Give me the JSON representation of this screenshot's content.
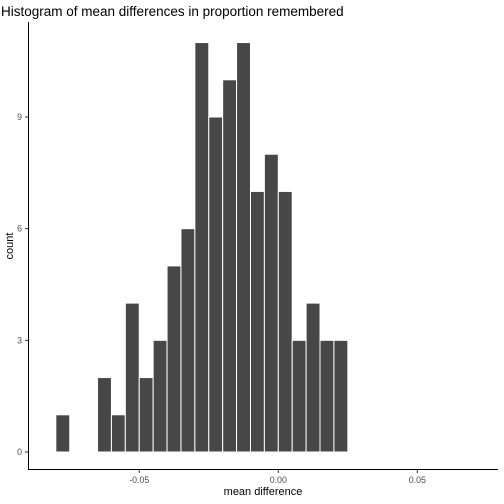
{
  "chart_data": {
    "type": "bar",
    "title": "Histogram of mean differences in proportion remembered",
    "xlabel": "mean difference",
    "ylabel": "count",
    "bin_width": 0.005,
    "bins": [
      {
        "x": -0.0775,
        "count": 1
      },
      {
        "x": -0.0725,
        "count": 0
      },
      {
        "x": -0.0675,
        "count": 0
      },
      {
        "x": -0.0625,
        "count": 2
      },
      {
        "x": -0.0575,
        "count": 1
      },
      {
        "x": -0.0525,
        "count": 4
      },
      {
        "x": -0.0475,
        "count": 2
      },
      {
        "x": -0.0425,
        "count": 3
      },
      {
        "x": -0.0375,
        "count": 5
      },
      {
        "x": -0.0325,
        "count": 6
      },
      {
        "x": -0.0275,
        "count": 11
      },
      {
        "x": -0.0225,
        "count": 9
      },
      {
        "x": -0.0175,
        "count": 10
      },
      {
        "x": -0.0125,
        "count": 11
      },
      {
        "x": -0.0075,
        "count": 7
      },
      {
        "x": -0.0025,
        "count": 8
      },
      {
        "x": 0.0025,
        "count": 7
      },
      {
        "x": 0.0075,
        "count": 3
      },
      {
        "x": 0.0125,
        "count": 4
      },
      {
        "x": 0.0175,
        "count": 3
      },
      {
        "x": 0.0225,
        "count": 3
      }
    ],
    "xlim": [
      -0.08,
      0.075
    ],
    "ylim": [
      0,
      11
    ],
    "x_ticks": [
      {
        "value": -0.05,
        "label": "-0.05"
      },
      {
        "value": 0.0,
        "label": "0.00"
      },
      {
        "value": 0.05,
        "label": "0.05"
      }
    ],
    "y_ticks": [
      {
        "value": 0,
        "label": "0"
      },
      {
        "value": 3,
        "label": "3"
      },
      {
        "value": 6,
        "label": "6"
      },
      {
        "value": 9,
        "label": "9"
      }
    ],
    "grid": false,
    "bar_fill": "#474747",
    "bar_outline": "#ffffff",
    "background": "#ffffff"
  }
}
